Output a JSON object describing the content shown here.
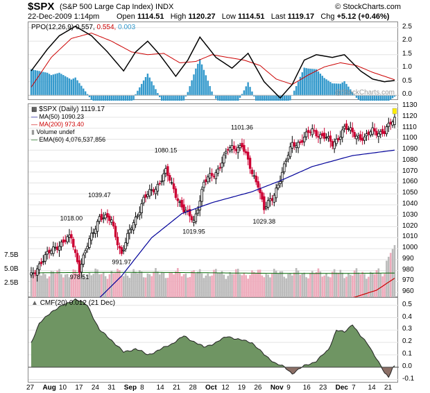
{
  "header": {
    "symbol": "$SPX",
    "name": "(S&P 500 Large Cap Index)",
    "exchange": "INDX",
    "source": "© StockCharts.com",
    "date": "22-Dec-2009 1:14pm",
    "open_label": "Open",
    "open": "1114.51",
    "high_label": "High",
    "high": "1120.27",
    "low_label": "Low",
    "low": "1114.51",
    "last_label": "Last",
    "last": "1119.17",
    "chg_label": "Chg",
    "chg": "+5.12 (+0.46%)"
  },
  "ppo": {
    "label": "PPO(12,26,9)",
    "v1": "0.557,",
    "v2": "0.554,",
    "v3": "0.003",
    "watermark": "@StockCharts.com",
    "colors": {
      "ppo": "#000000",
      "signal": "#cc0000",
      "hist": "#3399cc"
    }
  },
  "price": {
    "title": "$SPX (Daily) 1119.17",
    "ma50": "MA(50) 1090.23",
    "ma200": "MA(200) 973.40",
    "volume": "Volume undef",
    "ema60": "EMA(60) 4,076,537,856",
    "annotations": [
      {
        "text": "1018.00",
        "i": 20,
        "v": 1018.0,
        "pos": "above"
      },
      {
        "text": "1039.47",
        "i": 34,
        "v": 1039.47,
        "pos": "above"
      },
      {
        "text": "978.51",
        "i": 24,
        "v": 978.51,
        "pos": "below"
      },
      {
        "text": "991.97",
        "i": 45,
        "v": 991.97,
        "pos": "below"
      },
      {
        "text": "1080.15",
        "i": 67,
        "v": 1080.15,
        "pos": "above"
      },
      {
        "text": "1019.95",
        "i": 81,
        "v": 1019.95,
        "pos": "below"
      },
      {
        "text": "1101.36",
        "i": 105,
        "v": 1101.36,
        "pos": "above"
      },
      {
        "text": "1029.38",
        "i": 116,
        "v": 1029.38,
        "pos": "below"
      }
    ],
    "vol_labels": [
      "7.5B",
      "5.0B",
      "2.5B"
    ],
    "colors": {
      "up": "#000000",
      "down": "#cc0033",
      "ma50": "#000099",
      "ma200": "#cc0000",
      "ema": "#006600",
      "volup": "#bbbbbb",
      "voldown": "#eeaabb"
    }
  },
  "cmf": {
    "label": "CMF(20) 0.012 (21 Dec)",
    "colors": {
      "pos": "#6f9563",
      "neg": "#8c6f66"
    }
  },
  "x_axis": [
    "27",
    "Aug",
    "10",
    "17",
    "24",
    "31",
    "Sep",
    "8",
    "14",
    "21",
    "28",
    "Oct",
    "12",
    "19",
    "26",
    "Nov",
    "9",
    "16",
    "23",
    "Dec",
    "7",
    "14",
    "21"
  ],
  "chart_data": [
    {
      "type": "line",
      "title": "PPO(12,26,9) 0.557, 0.554, 0.003",
      "ylim": [
        -0.2,
        2.7
      ],
      "yticks": [
        -0.0,
        0.5,
        1.0,
        1.5,
        2.0,
        2.5
      ],
      "ytick_labels": [
        "0.0",
        "0.5",
        "1.0",
        "1.5",
        "2.0",
        "2.5"
      ],
      "series": [
        {
          "name": "PPO",
          "keyframes": [
            [
              0,
              0.9
            ],
            [
              8,
              1.7
            ],
            [
              14,
              2.2
            ],
            [
              22,
              2.55
            ],
            [
              30,
              2.2
            ],
            [
              38,
              1.6
            ],
            [
              46,
              0.9
            ],
            [
              52,
              1.6
            ],
            [
              58,
              2.0
            ],
            [
              64,
              1.5
            ],
            [
              72,
              0.7
            ],
            [
              78,
              1.3
            ],
            [
              84,
              2.15
            ],
            [
              92,
              1.4
            ],
            [
              100,
              1.0
            ],
            [
              108,
              1.55
            ],
            [
              116,
              0.5
            ],
            [
              124,
              -0.1
            ],
            [
              130,
              0.4
            ],
            [
              136,
              1.3
            ],
            [
              142,
              1.5
            ],
            [
              150,
              1.4
            ],
            [
              156,
              1.5
            ],
            [
              164,
              0.9
            ],
            [
              170,
              0.6
            ],
            [
              176,
              0.5
            ],
            [
              182,
              0.56
            ]
          ]
        },
        {
          "name": "Signal",
          "keyframes": [
            [
              0,
              0.3
            ],
            [
              10,
              1.4
            ],
            [
              20,
              2.1
            ],
            [
              30,
              2.3
            ],
            [
              40,
              2.0
            ],
            [
              50,
              1.6
            ],
            [
              58,
              1.5
            ],
            [
              66,
              1.55
            ],
            [
              74,
              1.2
            ],
            [
              82,
              1.25
            ],
            [
              90,
              1.5
            ],
            [
              98,
              1.4
            ],
            [
              106,
              1.3
            ],
            [
              114,
              1.1
            ],
            [
              122,
              0.6
            ],
            [
              130,
              0.4
            ],
            [
              138,
              0.75
            ],
            [
              146,
              1.05
            ],
            [
              154,
              1.2
            ],
            [
              162,
              1.1
            ],
            [
              170,
              0.85
            ],
            [
              176,
              0.7
            ],
            [
              182,
              0.55
            ]
          ]
        }
      ]
    },
    {
      "type": "candlestick",
      "title": "$SPX (Daily) 1119.17",
      "ylim": [
        955,
        1132
      ],
      "yticks": [
        960,
        970,
        980,
        990,
        1000,
        1010,
        1020,
        1030,
        1040,
        1050,
        1060,
        1070,
        1080,
        1090,
        1100,
        1110,
        1120,
        1130
      ],
      "close_keyframes": [
        [
          0,
          975
        ],
        [
          4,
          986
        ],
        [
          8,
          994
        ],
        [
          12,
          1002
        ],
        [
          16,
          1006
        ],
        [
          20,
          1010
        ],
        [
          24,
          982
        ],
        [
          28,
          1002
        ],
        [
          34,
          1030
        ],
        [
          40,
          1025
        ],
        [
          45,
          995
        ],
        [
          50,
          1020
        ],
        [
          56,
          1045
        ],
        [
          62,
          1056
        ],
        [
          67,
          1070
        ],
        [
          72,
          1050
        ],
        [
          76,
          1035
        ],
        [
          81,
          1025
        ],
        [
          86,
          1060
        ],
        [
          92,
          1070
        ],
        [
          98,
          1090
        ],
        [
          105,
          1095
        ],
        [
          110,
          1068
        ],
        [
          113,
          1060
        ],
        [
          116,
          1036
        ],
        [
          120,
          1045
        ],
        [
          124,
          1065
        ],
        [
          130,
          1095
        ],
        [
          134,
          1098
        ],
        [
          140,
          1108
        ],
        [
          146,
          1102
        ],
        [
          150,
          1095
        ],
        [
          156,
          1110
        ],
        [
          160,
          1106
        ],
        [
          166,
          1100
        ],
        [
          170,
          1108
        ],
        [
          176,
          1106
        ],
        [
          181,
          1119
        ]
      ],
      "ma50_keyframes": [
        [
          34,
          955
        ],
        [
          45,
          975
        ],
        [
          60,
          1010
        ],
        [
          75,
          1032
        ],
        [
          90,
          1042
        ],
        [
          110,
          1052
        ],
        [
          124,
          1062
        ],
        [
          140,
          1075
        ],
        [
          160,
          1085
        ],
        [
          181,
          1090
        ]
      ],
      "ma200_keyframes": [
        [
          160,
          955
        ],
        [
          172,
          962
        ],
        [
          181,
          973
        ]
      ],
      "volume_ylim": [
        0,
        10
      ],
      "volume_yticks": [
        2.5,
        5.0,
        7.5
      ],
      "volume_ytick_labels": [
        "2.5B",
        "5.0B",
        "7.5B"
      ]
    },
    {
      "type": "area",
      "title": "CMF(20) 0.012 (21 Dec)",
      "ylim": [
        -0.13,
        0.56
      ],
      "yticks": [
        -0.1,
        0.0,
        0.1,
        0.2,
        0.3,
        0.4,
        0.5
      ],
      "ytick_labels": [
        "-0.1",
        "0.0",
        "0.1",
        "0.2",
        "0.3",
        "0.4",
        "0.5"
      ],
      "keyframes": [
        [
          0,
          0.2
        ],
        [
          4,
          0.35
        ],
        [
          10,
          0.45
        ],
        [
          16,
          0.5
        ],
        [
          22,
          0.55
        ],
        [
          28,
          0.5
        ],
        [
          34,
          0.3
        ],
        [
          40,
          0.22
        ],
        [
          46,
          0.12
        ],
        [
          52,
          0.15
        ],
        [
          58,
          0.1
        ],
        [
          64,
          0.14
        ],
        [
          70,
          0.19
        ],
        [
          76,
          0.25
        ],
        [
          82,
          0.2
        ],
        [
          86,
          0.16
        ],
        [
          92,
          0.2
        ],
        [
          98,
          0.25
        ],
        [
          104,
          0.22
        ],
        [
          110,
          0.2
        ],
        [
          116,
          0.1
        ],
        [
          122,
          0.03
        ],
        [
          126,
          0.0
        ],
        [
          130,
          -0.05
        ],
        [
          136,
          0.01
        ],
        [
          142,
          0.05
        ],
        [
          148,
          0.14
        ],
        [
          152,
          0.3
        ],
        [
          156,
          0.28
        ],
        [
          160,
          0.35
        ],
        [
          164,
          0.25
        ],
        [
          168,
          0.18
        ],
        [
          172,
          0.07
        ],
        [
          176,
          -0.05
        ],
        [
          178,
          -0.08
        ],
        [
          180,
          0.0
        ],
        [
          181,
          0.012
        ]
      ]
    }
  ]
}
